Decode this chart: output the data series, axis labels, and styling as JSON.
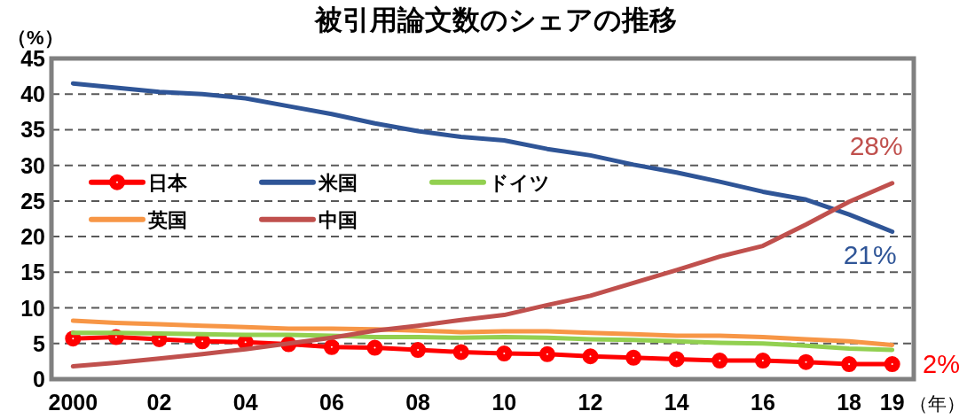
{
  "chart_data": {
    "type": "line",
    "title": "被引用論文数のシェアの推移",
    "xlabel": "（年）",
    "ylabel": "（%）",
    "categories": [
      "2000",
      null,
      "02",
      null,
      "04",
      null,
      "06",
      null,
      "08",
      null,
      "10",
      null,
      "12",
      null,
      "14",
      null,
      "16",
      null,
      "18",
      "19"
    ],
    "ylim": [
      0,
      45
    ],
    "yticks": [
      0,
      5,
      10,
      15,
      20,
      25,
      30,
      35,
      40,
      45
    ],
    "grid": "y",
    "legend": "left",
    "line_style": "solid",
    "series": [
      {
        "name": "日本",
        "color": "#ff0000",
        "marker": "circle",
        "values": [
          5.7,
          5.9,
          5.6,
          5.3,
          5.2,
          4.9,
          4.5,
          4.4,
          4.1,
          3.8,
          3.6,
          3.5,
          3.2,
          3.0,
          2.8,
          2.6,
          2.6,
          2.4,
          2.1,
          2.1
        ],
        "value_labels": [
          null,
          null,
          null,
          null,
          null,
          null,
          null,
          null,
          null,
          null,
          null,
          null,
          null,
          null,
          null,
          null,
          null,
          null,
          null,
          "2%"
        ]
      },
      {
        "name": "米国",
        "color": "#2f5597",
        "values": [
          41.5,
          40.9,
          40.3,
          40.0,
          39.4,
          38.3,
          37.2,
          35.9,
          34.8,
          34.0,
          33.5,
          32.3,
          31.4,
          30.1,
          29.0,
          27.7,
          26.3,
          25.2,
          23.1,
          20.7
        ],
        "value_labels": [
          null,
          null,
          null,
          null,
          null,
          null,
          null,
          null,
          null,
          null,
          null,
          null,
          null,
          null,
          null,
          null,
          null,
          null,
          null,
          "21%"
        ]
      },
      {
        "name": "ドイツ",
        "color": "#92d050",
        "values": [
          6.5,
          6.5,
          6.4,
          6.3,
          6.2,
          6.2,
          6.1,
          5.9,
          5.9,
          5.8,
          5.9,
          5.8,
          5.6,
          5.5,
          5.3,
          5.1,
          5.0,
          4.7,
          4.3,
          4.1
        ]
      },
      {
        "name": "英国",
        "color": "#f79646",
        "values": [
          8.2,
          7.9,
          7.7,
          7.5,
          7.3,
          7.1,
          7.1,
          7.0,
          6.8,
          6.6,
          6.7,
          6.7,
          6.5,
          6.3,
          6.1,
          6.1,
          5.9,
          5.6,
          5.3,
          4.8
        ]
      },
      {
        "name": "中国",
        "color": "#c0504d",
        "values": [
          1.8,
          2.3,
          2.9,
          3.5,
          4.2,
          5.0,
          5.8,
          6.8,
          7.5,
          8.3,
          9.0,
          10.4,
          11.7,
          13.5,
          15.3,
          17.2,
          18.7,
          21.7,
          24.9,
          27.5
        ],
        "value_labels": [
          null,
          null,
          null,
          null,
          null,
          null,
          null,
          null,
          null,
          null,
          null,
          null,
          null,
          null,
          null,
          null,
          null,
          null,
          null,
          "28%"
        ]
      }
    ]
  }
}
